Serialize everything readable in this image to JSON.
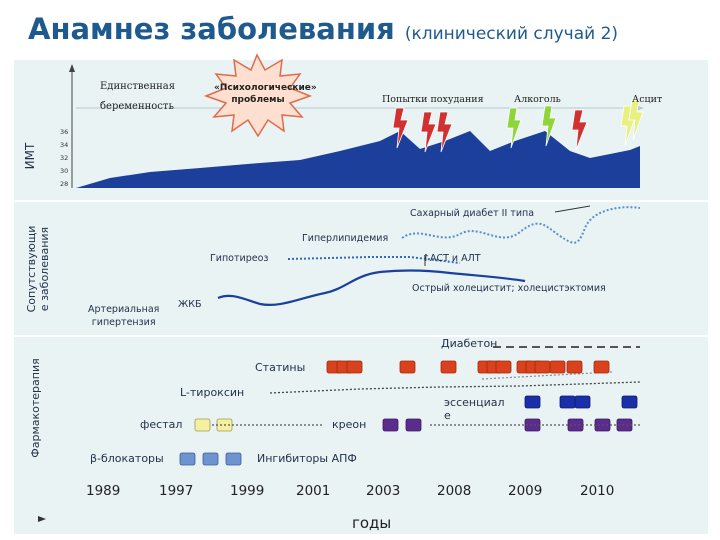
{
  "header": {
    "title": "Анамнез заболевания",
    "subtitle": "(клинический случай 2)"
  },
  "sections": {
    "bmi": "ИМТ",
    "comorbid": "Сопутствующи\nе заболевания",
    "pharma": "Фармакотерапия"
  },
  "events": {
    "pregnancy": "Единственная\nбеременность",
    "psych": "«Психологические»\nпроблемы",
    "weightloss": "Попытки похудания",
    "alcohol": "Алкоголь",
    "ascites": "Асцит"
  },
  "bmi_ticks": [
    "36",
    "34",
    "32",
    "30",
    "28"
  ],
  "diseases": {
    "diabetes": "Сахарный диабет II типа",
    "hyperlipidemia": "Гиперлипидемия",
    "hypothyroid": "Гипотиреоз",
    "ast_alt": "↑АСТ и АЛТ",
    "hypertension": "Артериальная\nгипертензия",
    "gallstone": "ЖКБ",
    "cholecystitis": "Острый холецистит; холецистэктомия"
  },
  "drugs": {
    "diabeton": "Диабетон",
    "statins": "Статины",
    "levothyroxine": "L-тироксин",
    "essentiale": "эссенциал\nе",
    "festal": "фестал",
    "creon": "креон",
    "beta_blockers": "β-блокаторы",
    "ace_inhibitors": "Ингибиторы АПФ"
  },
  "axis": {
    "years": [
      "1989",
      "1997",
      "1999",
      "2001",
      "2003",
      "2008",
      "2009",
      "2010"
    ],
    "label": "годы"
  },
  "colors": {
    "title": "#1f5a8e",
    "panel": "#e9f3f4",
    "bmi_area": "#1d3f9c",
    "diabetes_line": "#5b8dc6",
    "hypothyroid_line": "#2e6ab8",
    "hypertension_line": "#1b3f9e",
    "statins": "#d9421c",
    "levothyroxine": "#1a2fa8",
    "festal": "#f4f0a0",
    "creon": "#5c2b8e",
    "beta_blockers": "#6f93cf",
    "lightning_red": "#d03232",
    "lightning_green": "#8ed43a"
  }
}
